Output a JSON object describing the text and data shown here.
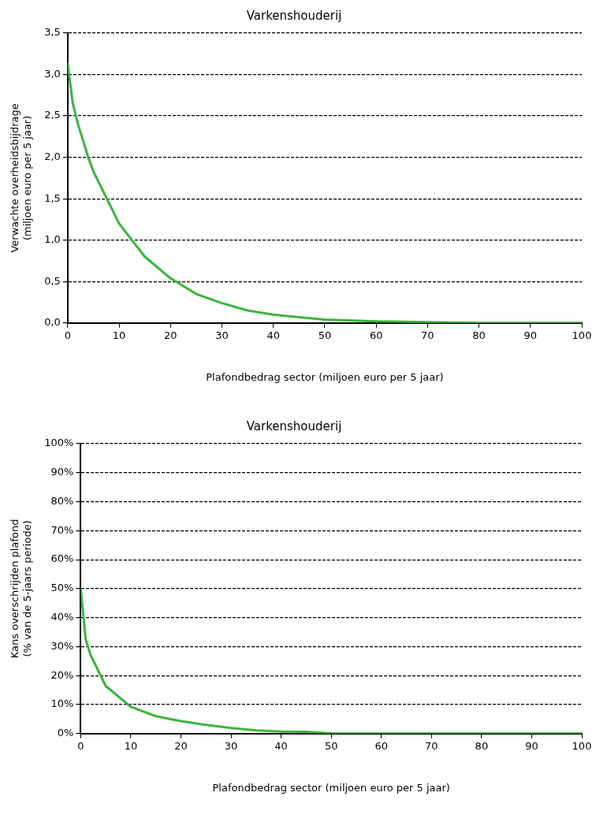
{
  "chart_data": [
    {
      "type": "line",
      "title": "Varkenshouderij",
      "xlabel": "Plafondbedrag sector (miljoen euro per 5 jaar)",
      "ylabel": "Verwachte overheidsbijdrage\n(miljoen euro per 5 jaar)",
      "x": [
        0,
        1,
        2,
        4,
        5,
        10,
        15,
        20,
        25,
        30,
        35,
        40,
        45,
        50,
        60,
        70,
        80,
        90,
        100
      ],
      "series": [
        {
          "color": "#3cb43c",
          "values": [
            3.13,
            2.65,
            2.4,
            2.0,
            1.83,
            1.2,
            0.8,
            0.54,
            0.35,
            0.24,
            0.15,
            0.1,
            0.07,
            0.04,
            0.02,
            0.01,
            0,
            0,
            0
          ]
        }
      ],
      "xlim": [
        0,
        100
      ],
      "xticks": [
        0,
        10,
        20,
        30,
        40,
        50,
        60,
        70,
        80,
        90,
        100
      ],
      "ylim": [
        0,
        3.5
      ],
      "yticks": [
        {
          "value": 0,
          "label": "0,0"
        },
        {
          "value": 0.5,
          "label": "0,5"
        },
        {
          "value": 1,
          "label": "1,0"
        },
        {
          "value": 1.5,
          "label": "1,5"
        },
        {
          "value": 2,
          "label": "2,0"
        },
        {
          "value": 2.5,
          "label": "2,5"
        },
        {
          "value": 3,
          "label": "3,0"
        },
        {
          "value": 3.5,
          "label": "3,5"
        }
      ],
      "grid": "y",
      "legend": false,
      "marker": "none",
      "line_style": "solid"
    },
    {
      "type": "line",
      "title": "Varkenshouderij",
      "xlabel": "Plafondbedrag sector (miljoen euro per 5 jaar)",
      "ylabel": "Kans overschrijden plafond\n(% van de 5-jaars periode)",
      "x": [
        0,
        1,
        2,
        5,
        10,
        15,
        20,
        25,
        30,
        35,
        40,
        45,
        50,
        60,
        70,
        80,
        90,
        100
      ],
      "series": [
        {
          "color": "#3cb43c",
          "values": [
            50,
            32.5,
            27,
            16.4,
            9.2,
            6,
            4.3,
            3,
            1.9,
            1.1,
            0.7,
            0.6,
            0.1,
            0,
            0,
            0,
            0,
            0
          ]
        }
      ],
      "xlim": [
        0,
        100
      ],
      "xticks": [
        0,
        10,
        20,
        30,
        40,
        50,
        60,
        70,
        80,
        90,
        100
      ],
      "ylim": [
        0,
        100
      ],
      "yticks": [
        {
          "value": 0,
          "label": "0%"
        },
        {
          "value": 10,
          "label": "10%"
        },
        {
          "value": 20,
          "label": "20%"
        },
        {
          "value": 30,
          "label": "30%"
        },
        {
          "value": 40,
          "label": "40%"
        },
        {
          "value": 50,
          "label": "50%"
        },
        {
          "value": 60,
          "label": "60%"
        },
        {
          "value": 70,
          "label": "70%"
        },
        {
          "value": 80,
          "label": "80%"
        },
        {
          "value": 90,
          "label": "90%"
        },
        {
          "value": 100,
          "label": "100%"
        }
      ],
      "grid": "y",
      "legend": false,
      "marker": "none",
      "line_style": "solid"
    }
  ]
}
